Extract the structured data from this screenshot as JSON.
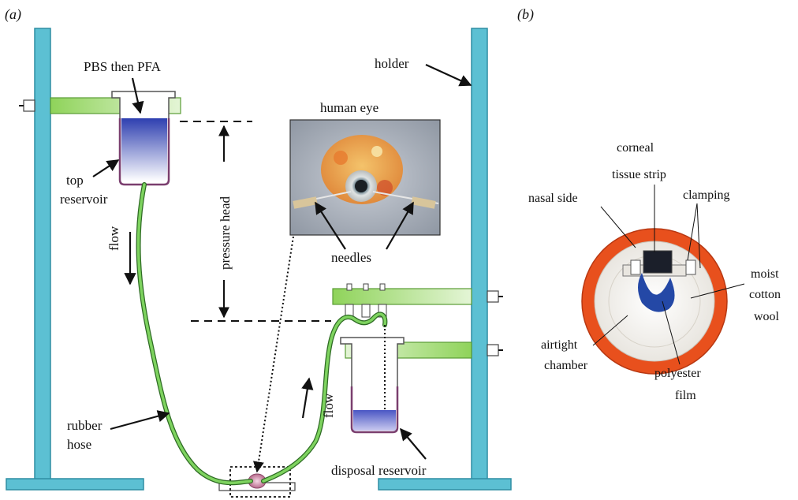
{
  "panel_a": {
    "label": "(a)",
    "labels": {
      "pbs_pfa": "PBS then PFA",
      "holder": "holder",
      "human_eye": "human eye",
      "top_reservoir_1": "top",
      "top_reservoir_2": "reservoir",
      "flow_left": "flow",
      "pressure_head": "pressure head",
      "needles": "needles",
      "flow_right": "flow",
      "rubber_hose_1": "rubber",
      "rubber_hose_2": "hose",
      "disposal_reservoir": "disposal reservoir"
    }
  },
  "panel_b": {
    "label": "(b)",
    "labels": {
      "corneal_1": "corneal",
      "corneal_2": "tissue strip",
      "nasal_side": "nasal side",
      "clamping": "clamping",
      "moist_1": "moist",
      "moist_2": "cotton",
      "moist_3": "wool",
      "airtight_1": "airtight",
      "airtight_2": "chamber",
      "polyester_1": "polyester",
      "polyester_2": "film"
    }
  },
  "colors": {
    "stand": "#5cc0d3",
    "stand_stroke": "#2e8ea3",
    "arm": "#8fd35a",
    "hose": "#5fb84a",
    "reservoir_fluid": "#2e3fb0",
    "reservoir_wall": "#7a3e6e",
    "chamber_ring": "#e8501d"
  }
}
